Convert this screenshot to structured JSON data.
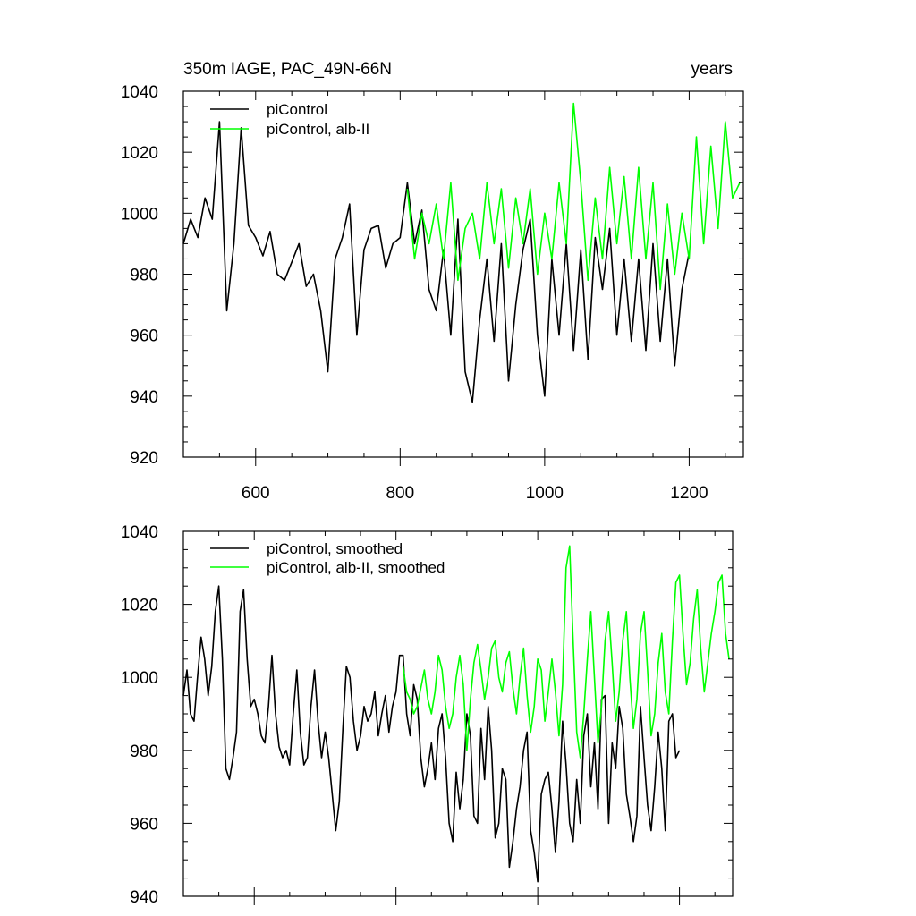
{
  "chart_data": [
    {
      "type": "line",
      "title": "350m IAGE, PAC_49N-66N",
      "subtitle": "years",
      "xlim": [
        500,
        1275
      ],
      "ylim": [
        920,
        1040
      ],
      "xticks": [
        600,
        800,
        1000,
        1200
      ],
      "xtick_labels": [
        "600",
        "800",
        "1000",
        "1200"
      ],
      "yticks": [
        920,
        940,
        960,
        980,
        1000,
        1020,
        1040
      ],
      "ytick_labels": [
        "920",
        "940",
        "960",
        "980",
        "1000",
        "1020",
        "1040"
      ],
      "legend_position": "top-left",
      "series": [
        {
          "name": "piControl",
          "color": "#000000",
          "x": [
            500,
            510,
            520,
            530,
            540,
            550,
            560,
            570,
            580,
            590,
            600,
            610,
            620,
            630,
            640,
            650,
            660,
            670,
            680,
            690,
            700,
            710,
            720,
            730,
            740,
            750,
            760,
            770,
            780,
            790,
            800,
            810,
            820,
            830,
            840,
            850,
            860,
            870,
            880,
            890,
            900,
            910,
            920,
            930,
            940,
            950,
            960,
            970,
            980,
            990,
            1000,
            1010,
            1020,
            1030,
            1040,
            1050,
            1060,
            1070,
            1080,
            1090,
            1100,
            1110,
            1120,
            1130,
            1140,
            1150,
            1160,
            1170,
            1180,
            1190,
            1200
          ],
          "y": [
            990,
            998,
            992,
            1005,
            998,
            1030,
            968,
            990,
            1028,
            996,
            992,
            986,
            994,
            980,
            978,
            984,
            990,
            976,
            980,
            968,
            948,
            985,
            992,
            1003,
            960,
            988,
            995,
            996,
            982,
            990,
            992,
            1010,
            990,
            1001,
            975,
            968,
            988,
            960,
            998,
            948,
            938,
            965,
            985,
            958,
            990,
            945,
            970,
            988,
            998,
            960,
            940,
            985,
            960,
            990,
            955,
            988,
            952,
            992,
            975,
            995,
            960,
            985,
            958,
            985,
            955,
            990,
            958,
            985,
            950,
            975,
            987
          ]
        },
        {
          "name": "piControl, alb-II",
          "color": "#00ff00",
          "x": [
            810,
            820,
            830,
            840,
            850,
            860,
            870,
            880,
            890,
            900,
            910,
            920,
            930,
            940,
            950,
            960,
            970,
            980,
            990,
            1000,
            1010,
            1020,
            1030,
            1040,
            1050,
            1060,
            1070,
            1080,
            1090,
            1100,
            1110,
            1120,
            1130,
            1140,
            1150,
            1160,
            1170,
            1180,
            1190,
            1200,
            1210,
            1220,
            1230,
            1240,
            1250,
            1260,
            1270
          ],
          "y": [
            1008,
            985,
            1000,
            990,
            1003,
            985,
            1010,
            978,
            995,
            1000,
            985,
            1010,
            990,
            1008,
            982,
            1005,
            990,
            1008,
            980,
            1000,
            985,
            1010,
            990,
            1036,
            1010,
            978,
            1005,
            985,
            1015,
            990,
            1012,
            985,
            1015,
            985,
            1010,
            975,
            1003,
            980,
            1000,
            985,
            1025,
            990,
            1022,
            995,
            1030,
            1005,
            1010
          ]
        }
      ]
    },
    {
      "type": "line",
      "title": "",
      "xlim": [
        500,
        1275
      ],
      "ylim": [
        940,
        1040
      ],
      "xticks": [
        600,
        800,
        1000,
        1200
      ],
      "yticks": [
        940,
        960,
        980,
        1000,
        1020,
        1040
      ],
      "ytick_labels": [
        "940",
        "960",
        "980",
        "1000",
        "1020",
        "1040"
      ],
      "legend_position": "top-left",
      "series": [
        {
          "name": "piControl, smoothed",
          "color": "#000000",
          "x": [
            500,
            505,
            510,
            515,
            520,
            525,
            530,
            535,
            540,
            545,
            550,
            555,
            560,
            565,
            570,
            575,
            580,
            585,
            590,
            595,
            600,
            605,
            610,
            615,
            620,
            625,
            630,
            635,
            640,
            645,
            650,
            655,
            660,
            665,
            670,
            675,
            680,
            685,
            690,
            695,
            700,
            705,
            710,
            715,
            720,
            725,
            730,
            735,
            740,
            745,
            750,
            755,
            760,
            765,
            770,
            775,
            780,
            785,
            790,
            795,
            800,
            805,
            810,
            815,
            820,
            825,
            830,
            835,
            840,
            845,
            850,
            855,
            860,
            865,
            870,
            875,
            880,
            885,
            890,
            895,
            900,
            905,
            910,
            915,
            920,
            925,
            930,
            935,
            940,
            945,
            950,
            955,
            960,
            965,
            970,
            975,
            980,
            985,
            990,
            995,
            1000,
            1005,
            1010,
            1015,
            1020,
            1025,
            1030,
            1035,
            1040,
            1045,
            1050,
            1055,
            1060,
            1065,
            1070,
            1075,
            1080,
            1085,
            1090,
            1095,
            1100,
            1105,
            1110,
            1115,
            1120,
            1125,
            1130,
            1135,
            1140,
            1145,
            1150,
            1155,
            1160,
            1165,
            1170,
            1175,
            1180,
            1185,
            1190,
            1195,
            1200
          ],
          "y": [
            995,
            1002,
            990,
            988,
            1000,
            1011,
            1005,
            995,
            1003,
            1018,
            1025,
            1005,
            975,
            972,
            978,
            985,
            1018,
            1024,
            1005,
            992,
            994,
            990,
            984,
            982,
            992,
            1006,
            990,
            981,
            978,
            980,
            976,
            990,
            1002,
            985,
            976,
            978,
            992,
            1002,
            988,
            978,
            985,
            978,
            968,
            958,
            966,
            986,
            1003,
            1000,
            988,
            980,
            984,
            992,
            988,
            990,
            996,
            984,
            990,
            995,
            985,
            992,
            996,
            1006,
            1006,
            990,
            984,
            998,
            994,
            978,
            970,
            975,
            982,
            972,
            986,
            990,
            978,
            960,
            955,
            974,
            964,
            972,
            990,
            984,
            962,
            960,
            986,
            972,
            992,
            980,
            956,
            960,
            975,
            972,
            948,
            955,
            964,
            970,
            980,
            985,
            958,
            952,
            944,
            968,
            972,
            974,
            964,
            952,
            966,
            988,
            976,
            960,
            955,
            972,
            960,
            984,
            990,
            970,
            982,
            964,
            994,
            995,
            960,
            982,
            975,
            992,
            986,
            968,
            962,
            955,
            962,
            992,
            978,
            965,
            958,
            970,
            985,
            975,
            958,
            988,
            990,
            978,
            980
          ]
        },
        {
          "name": "piControl, alb-II, smoothed",
          "color": "#00ff00",
          "x": [
            810,
            815,
            820,
            825,
            830,
            835,
            840,
            845,
            850,
            855,
            860,
            865,
            870,
            875,
            880,
            885,
            890,
            895,
            900,
            905,
            910,
            915,
            920,
            925,
            930,
            935,
            940,
            945,
            950,
            955,
            960,
            965,
            970,
            975,
            980,
            985,
            990,
            995,
            1000,
            1005,
            1010,
            1015,
            1020,
            1025,
            1030,
            1035,
            1040,
            1045,
            1050,
            1055,
            1060,
            1065,
            1070,
            1075,
            1080,
            1085,
            1090,
            1095,
            1100,
            1105,
            1110,
            1115,
            1120,
            1125,
            1130,
            1135,
            1140,
            1145,
            1150,
            1155,
            1160,
            1165,
            1170,
            1175,
            1180,
            1185,
            1190,
            1195,
            1200,
            1205,
            1210,
            1215,
            1220,
            1225,
            1230,
            1235,
            1240,
            1245,
            1250,
            1255,
            1260,
            1265,
            1270
          ],
          "y": [
            1003,
            996,
            994,
            990,
            992,
            997,
            1002,
            994,
            990,
            996,
            1006,
            1002,
            992,
            986,
            990,
            1000,
            1006,
            998,
            980,
            994,
            1004,
            1009,
            1002,
            994,
            1000,
            1008,
            1010,
            1000,
            996,
            1004,
            1007,
            997,
            990,
            1000,
            1008,
            995,
            985,
            992,
            1005,
            1002,
            988,
            996,
            1005,
            996,
            984,
            998,
            1030,
            1036,
            1010,
            985,
            978,
            990,
            1005,
            1018,
            1000,
            982,
            992,
            1010,
            1018,
            1004,
            988,
            996,
            1010,
            1018,
            1000,
            986,
            994,
            1012,
            1018,
            1002,
            984,
            990,
            1004,
            1012,
            996,
            990,
            1010,
            1026,
            1028,
            1012,
            998,
            1004,
            1016,
            1024,
            1008,
            996,
            1004,
            1012,
            1018,
            1026,
            1028,
            1012,
            1005
          ]
        }
      ]
    }
  ]
}
